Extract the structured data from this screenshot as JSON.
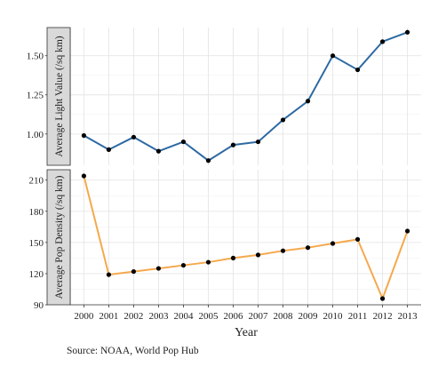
{
  "chart_data": {
    "type": "line",
    "xlabel": "Year",
    "caption": "Source: NOAA, World Pop Hub",
    "x": [
      2000,
      2001,
      2002,
      2003,
      2004,
      2005,
      2006,
      2007,
      2008,
      2009,
      2010,
      2011,
      2012,
      2013
    ],
    "x_tick_labels": [
      "2000",
      "2001",
      "2002",
      "2003",
      "2004",
      "2005",
      "2006",
      "2007",
      "2008",
      "2009",
      "2010",
      "2011",
      "2012",
      "2013"
    ],
    "facets": [
      {
        "strip_label": "Average Light Value (/sq km)",
        "color": "#2e6aa3",
        "ylim": [
          0.8,
          1.68
        ],
        "yticks": [
          1.0,
          1.25,
          1.5
        ],
        "ytick_labels": [
          "1.00",
          "1.25",
          "1.50"
        ],
        "values": [
          0.99,
          0.9,
          0.98,
          0.89,
          0.95,
          0.83,
          0.93,
          0.95,
          1.09,
          1.21,
          1.5,
          1.41,
          1.59,
          1.65
        ]
      },
      {
        "strip_label": "Average Pop Density (/sq km)",
        "color": "#f5a94d",
        "ylim": [
          90,
          220
        ],
        "yticks": [
          90,
          120,
          150,
          180,
          210
        ],
        "ytick_labels": [
          "90",
          "120",
          "150",
          "180",
          "210"
        ],
        "values": [
          214,
          119,
          122,
          125,
          128,
          131,
          135,
          138,
          142,
          145,
          149,
          153,
          96,
          161
        ]
      }
    ],
    "grid": true
  }
}
